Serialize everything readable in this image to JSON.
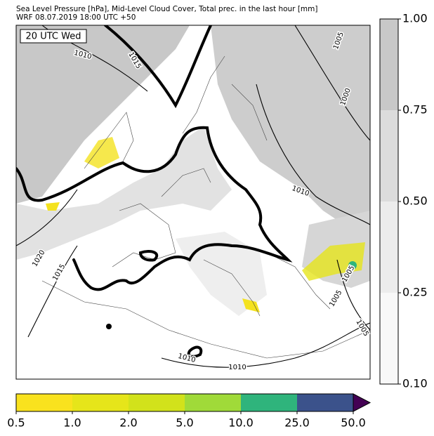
{
  "header": {
    "title": "Sea Level Pressure [hPa], Mid-Level Cloud Cover, Total prec. in the last hour [mm]",
    "subtitle": "WRF 08.07.2019 18:00 UTC +50"
  },
  "map": {
    "time_label": "20 UTC Wed",
    "isobar_labels": [
      "1010",
      "1015",
      "1005",
      "1000",
      "1010",
      "1020",
      "1015",
      "1005",
      "1005",
      "1005",
      "1010",
      "1010"
    ]
  },
  "cloud_colorbar": {
    "ticks": [
      "1.00",
      "0.75",
      "0.50",
      "0.25",
      "0.10"
    ],
    "colors": [
      "#c8c8c8",
      "#dcdcdc",
      "#ececec",
      "#f8f8f8"
    ]
  },
  "precip_colorbar": {
    "ticks": [
      "0.5",
      "1.0",
      "2.0",
      "5.0",
      "10.0",
      "25.0",
      "50.0"
    ],
    "colors": [
      "#f9e21e",
      "#e6e51a",
      "#d2e21b",
      "#a0da39",
      "#2fb47c",
      "#3b528b"
    ],
    "extend_color": "#440154"
  }
}
